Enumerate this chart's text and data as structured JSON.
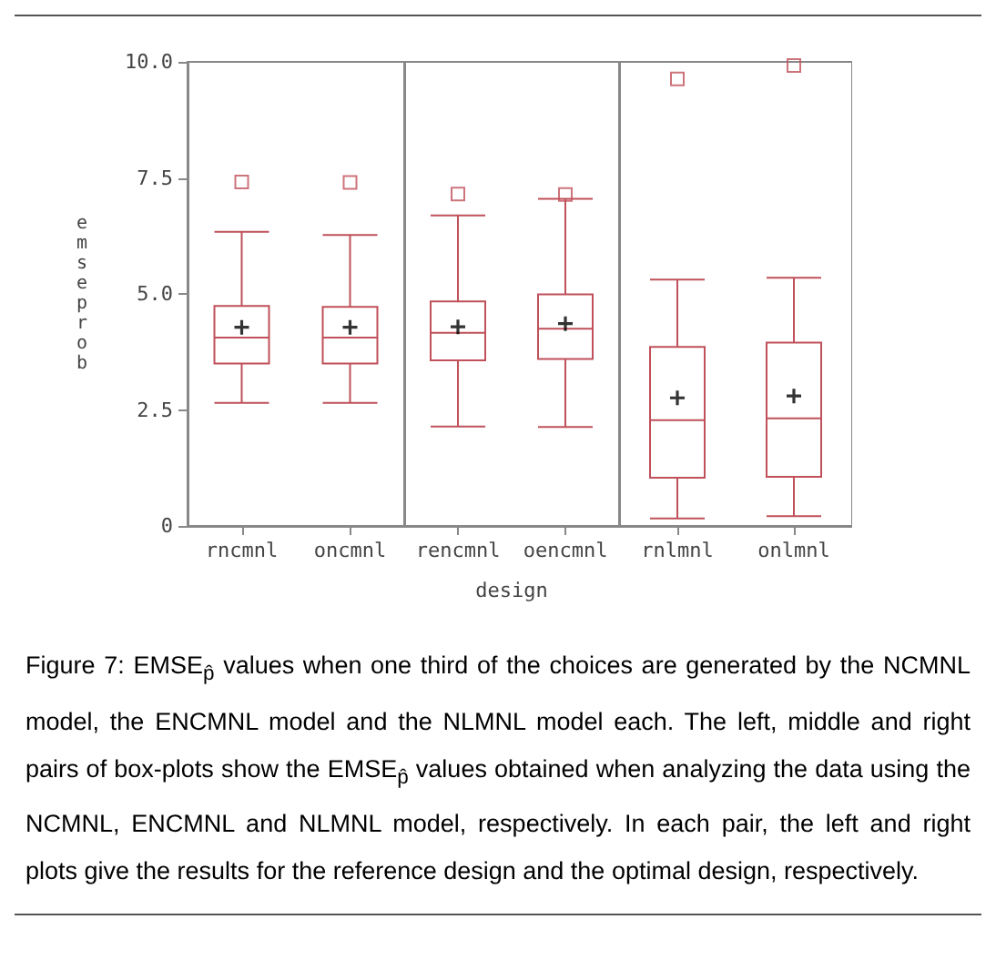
{
  "chart_data": [
    {
      "type": "box",
      "ylabel": "emseprob",
      "categories": [
        "rncmnl",
        "oncmnl"
      ],
      "color": "#c0505a",
      "marker": "square",
      "ylim": [
        0,
        10
      ],
      "yticks": [
        0,
        2.5,
        {
          "value": 5,
          "label": "5.0"
        },
        7.5,
        {
          "value": 10,
          "label": "10.0"
        }
      ],
      "grid": false,
      "boxes": [
        {
          "low": 2.65,
          "q1": 3.5,
          "median": 4.06,
          "q3": 4.74,
          "high": 6.34,
          "mean": 4.28,
          "outliers": [
            7.41
          ]
        },
        {
          "low": 2.65,
          "q1": 3.5,
          "median": 4.06,
          "q3": 4.72,
          "high": 6.27,
          "mean": 4.28,
          "outliers": [
            7.4
          ]
        }
      ],
      "annotations": [
        "Figure 7: EMSE$_{p̂}$ values when one third of the choices are generated by the NCMNL model, the ENCMNL model and the NLMNL model each. The left, middle and right pairs of box-plots show the EMSE$_{p̂}$ values obtained when analyzing the data using the NCMNL, ENCMNL and NLMNL model, respectively. In each pair, the left and right plots give the results for the reference design and the optimal design, respectively."
      ]
    },
    {
      "type": "box",
      "xlabel": "design",
      "categories": [
        "rencmnl",
        "oencmnl"
      ],
      "color": "#c0505a",
      "marker": "square",
      "ylim": [
        0,
        10
      ],
      "tick_labels": "x",
      "grid": false,
      "boxes": [
        {
          "low": 2.14,
          "q1": 3.57,
          "median": 4.16,
          "q3": 4.84,
          "high": 6.69,
          "mean": 4.29,
          "outliers": [
            7.15
          ]
        },
        {
          "low": 2.13,
          "q1": 3.6,
          "median": 4.25,
          "q3": 4.99,
          "high": 7.05,
          "mean": 4.36,
          "outliers": [
            7.14
          ]
        }
      ]
    },
    {
      "type": "box",
      "categories": [
        "rnlmnl",
        "onlmnl"
      ],
      "color": "#c0505a",
      "marker": "square",
      "ylim": [
        0,
        10
      ],
      "tick_labels": "x",
      "grid": false,
      "boxes": [
        {
          "low": 0.16,
          "q1": 1.04,
          "median": 2.28,
          "q3": 3.86,
          "high": 5.31,
          "mean": 2.76,
          "outliers": [
            9.63
          ]
        },
        {
          "low": 0.21,
          "q1": 1.06,
          "median": 2.32,
          "q3": 3.95,
          "high": 5.35,
          "mean": 2.8,
          "outliers": [
            9.92
          ]
        }
      ]
    }
  ]
}
